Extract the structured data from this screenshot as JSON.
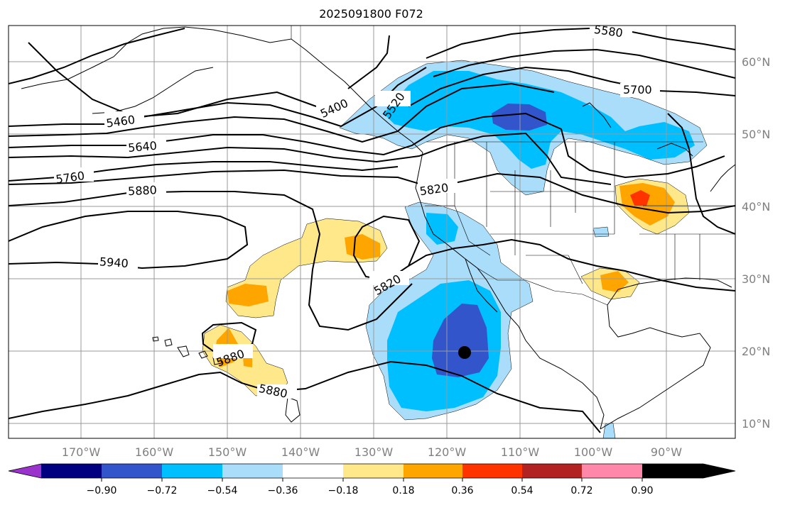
{
  "title": "2025091800 F072",
  "map": {
    "lon_labels": [
      "170°W",
      "160°W",
      "150°W",
      "140°W",
      "130°W",
      "120°W",
      "110°W",
      "100°W",
      "90°W"
    ],
    "lat_labels": [
      "60°N",
      "50°N",
      "40°N",
      "30°N",
      "20°N",
      "10°N"
    ],
    "contour_labels": [
      "5580",
      "5700",
      "5460",
      "5400",
      "5520",
      "5640",
      "5760",
      "5880",
      "5820",
      "5940",
      "5820",
      "5880",
      "5880"
    ],
    "marker": {
      "lon": -117.3,
      "lat": 19.8,
      "color": "#000000"
    }
  },
  "colorbar": {
    "ticks": [
      "−0.90",
      "−0.72",
      "−0.54",
      "−0.36",
      "−0.18",
      "0.18",
      "0.36",
      "0.54",
      "0.72",
      "0.90"
    ],
    "colors": [
      "#9933cc",
      "#000080",
      "#3355cc",
      "#00bfff",
      "#aaddfa",
      "#ffffff",
      "#ffe88a",
      "#ffa500",
      "#ff3300",
      "#b22222",
      "#ff88aa"
    ]
  },
  "colors": {
    "contour": "#000000",
    "grid": "#9a9a9a",
    "coast": "#000000"
  }
}
